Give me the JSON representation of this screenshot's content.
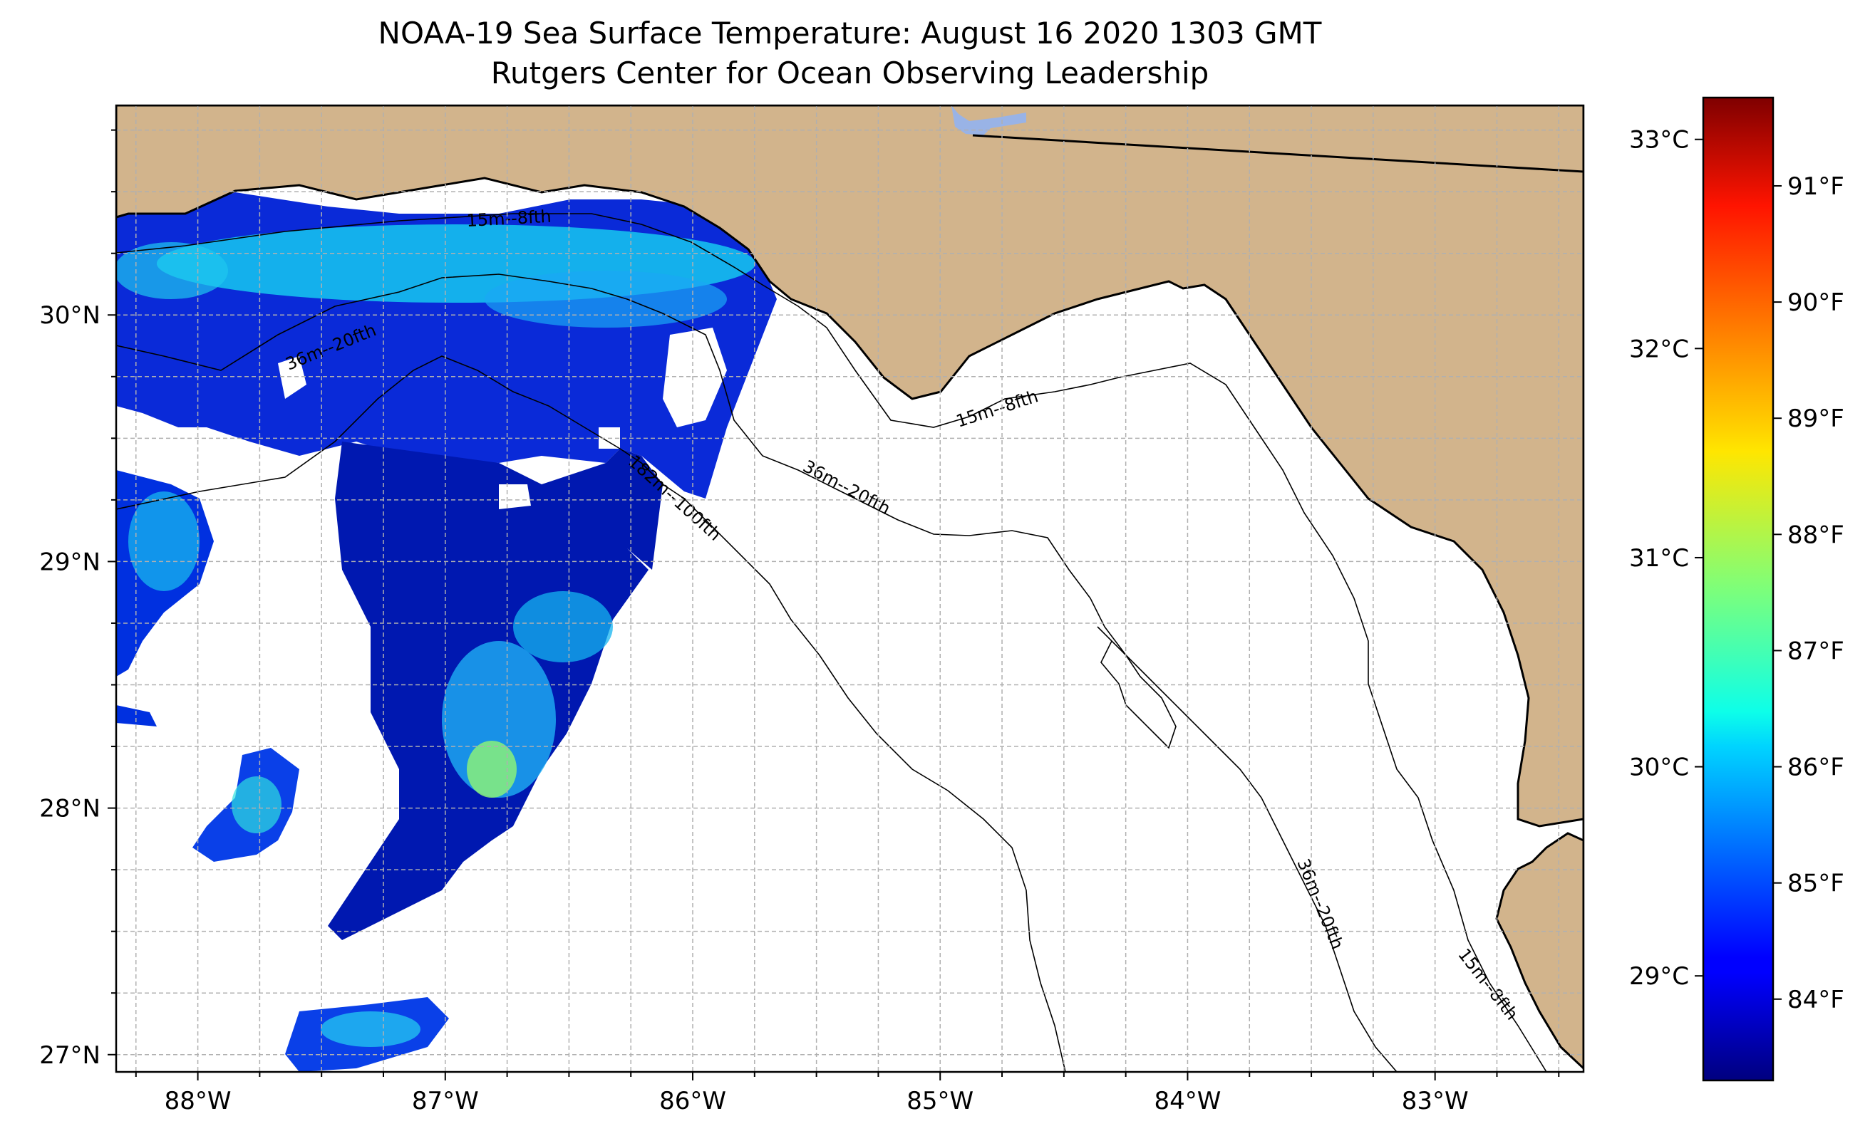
{
  "title": {
    "line1": "NOAA-19 Sea Surface Temperature: August 16 2020 1303 GMT",
    "line2": "Rutgers Center for Ocean Observing Leadership"
  },
  "map": {
    "lon_range": [
      -88.33,
      -82.4
    ],
    "lat_range": [
      26.93,
      30.85
    ],
    "longitude_ticks": [
      {
        "value": -88,
        "label": "88°W"
      },
      {
        "value": -87,
        "label": "87°W"
      },
      {
        "value": -86,
        "label": "86°W"
      },
      {
        "value": -85,
        "label": "85°W"
      },
      {
        "value": -84,
        "label": "84°W"
      },
      {
        "value": -83,
        "label": "83°W"
      }
    ],
    "latitude_ticks": [
      {
        "value": 30,
        "label": "30°N"
      },
      {
        "value": 29,
        "label": "29°N"
      },
      {
        "value": 28,
        "label": "28°N"
      },
      {
        "value": 27,
        "label": "27°N"
      }
    ],
    "contour_labels": [
      {
        "text": "15m--8fth"
      },
      {
        "text": "36m--20fth"
      },
      {
        "text": "182m--100fth"
      },
      {
        "text": "15m--8fth"
      },
      {
        "text": "36m--20fth"
      },
      {
        "text": "36m--20fth"
      },
      {
        "text": "15m--8fth"
      }
    ],
    "colors": {
      "land": "#d2b48c",
      "ocean_nodata": "#ffffff",
      "lake": "#99b3e6"
    }
  },
  "colorbar": {
    "celsius_range": [
      28.5,
      33.2
    ],
    "celsius_ticks": [
      {
        "value": 29,
        "label": "29°C"
      },
      {
        "value": 30,
        "label": "30°C"
      },
      {
        "value": 31,
        "label": "31°C"
      },
      {
        "value": 32,
        "label": "32°C"
      },
      {
        "value": 33,
        "label": "33°C"
      }
    ],
    "fahrenheit_ticks": [
      {
        "value": 84,
        "label": "84°F"
      },
      {
        "value": 85,
        "label": "85°F"
      },
      {
        "value": 86,
        "label": "86°F"
      },
      {
        "value": 87,
        "label": "87°F"
      },
      {
        "value": 88,
        "label": "88°F"
      },
      {
        "value": 89,
        "label": "89°F"
      },
      {
        "value": 90,
        "label": "90°F"
      },
      {
        "value": 91,
        "label": "91°F"
      }
    ],
    "colormap": "jet"
  }
}
